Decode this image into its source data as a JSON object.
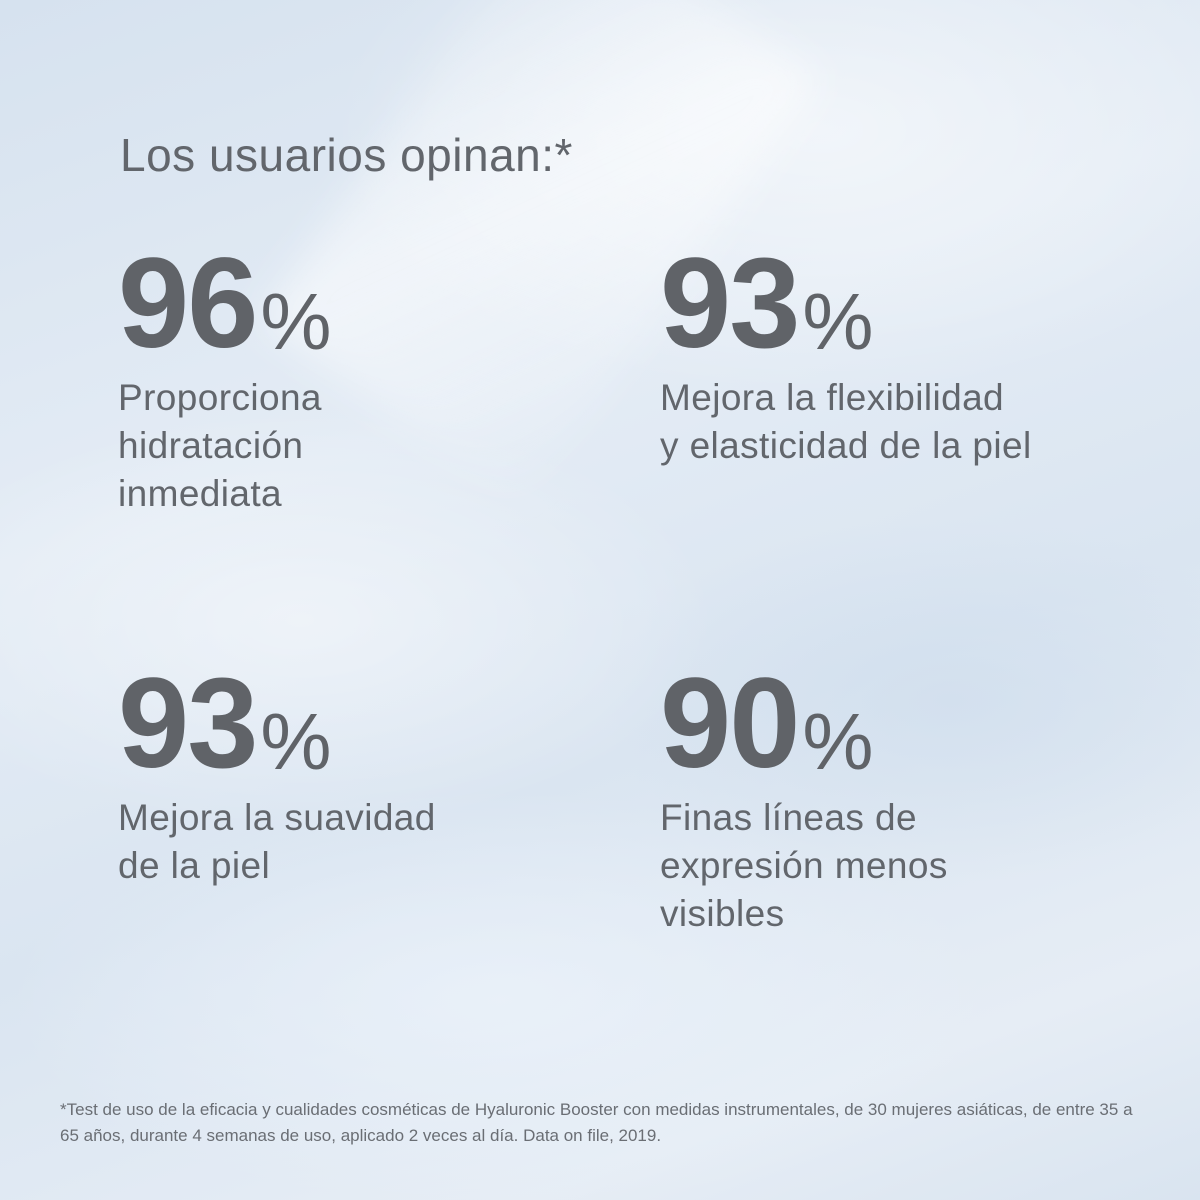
{
  "title": "Los usuarios opinan:*",
  "stats": [
    {
      "value": "96",
      "unit": "%",
      "description": "Proporciona\nhidratación\ninmediata"
    },
    {
      "value": "93",
      "unit": "%",
      "description": "Mejora la flexibilidad\ny elasticidad de la piel"
    },
    {
      "value": "93",
      "unit": "%",
      "description": "Mejora la suavidad\nde la piel"
    },
    {
      "value": "90",
      "unit": "%",
      "description": "Finas líneas de\nexpresión menos\nvisibles"
    }
  ],
  "footnote": "*Test de uso de la eficacia y cualidades cosméticas de Hyaluronic Booster con medidas instrumentales, de 30 mujeres asiáticas, de entre 35 a 65 años, durante 4 semanas de uso, aplicado 2 veces al día. Data on file, 2019.",
  "colors": {
    "text": "#606368",
    "background": "#dfe8f2"
  }
}
